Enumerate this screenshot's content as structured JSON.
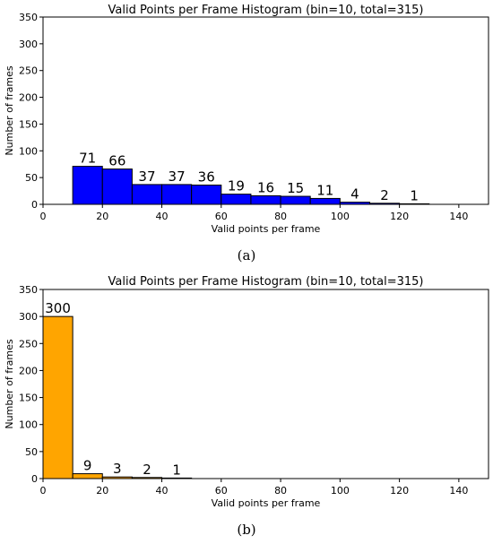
{
  "chart_data": [
    {
      "type": "bar",
      "title": "Valid Points per Frame Histogram (bin=10, total=315)",
      "xlabel": "Valid points per frame",
      "ylabel": "Number of frames",
      "xlim": [
        0,
        150
      ],
      "ylim": [
        0,
        350
      ],
      "xticks": [
        0,
        20,
        40,
        60,
        80,
        100,
        120,
        140
      ],
      "yticks": [
        0,
        50,
        100,
        150,
        200,
        250,
        300,
        350
      ],
      "bin_width": 10,
      "bins": [
        10,
        20,
        30,
        40,
        50,
        60,
        70,
        80,
        90,
        100,
        110,
        120
      ],
      "values": [
        71,
        66,
        37,
        37,
        36,
        19,
        16,
        15,
        11,
        4,
        2,
        1
      ],
      "color": "#0000ff",
      "caption": "(a)",
      "grid": false
    },
    {
      "type": "bar",
      "title": "Valid Points per Frame Histogram (bin=10, total=315)",
      "xlabel": "Valid points per frame",
      "ylabel": "Number of frames",
      "xlim": [
        0,
        150
      ],
      "ylim": [
        0,
        350
      ],
      "xticks": [
        0,
        20,
        40,
        60,
        80,
        100,
        120,
        140
      ],
      "yticks": [
        0,
        50,
        100,
        150,
        200,
        250,
        300,
        350
      ],
      "bin_width": 10,
      "bins": [
        0,
        10,
        20,
        30,
        40
      ],
      "values": [
        300,
        9,
        3,
        2,
        1
      ],
      "color": "#ffa500",
      "caption": "(b)",
      "grid": false
    }
  ]
}
